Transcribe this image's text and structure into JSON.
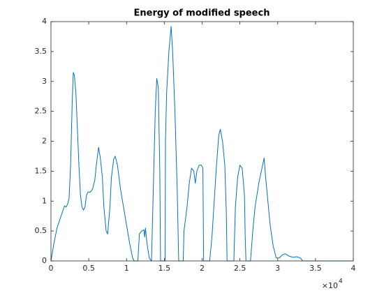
{
  "chart_data": {
    "type": "line",
    "title": "Energy of modified speech",
    "x_multiplier": "×10",
    "x_multiplier_exponent": "4",
    "color": "#0072bd",
    "xlim": [
      0,
      40000
    ],
    "ylim": [
      0,
      4
    ],
    "xticks": [
      {
        "value": 0,
        "label": "0"
      },
      {
        "value": 5000,
        "label": "0.5"
      },
      {
        "value": 10000,
        "label": "1"
      },
      {
        "value": 15000,
        "label": "1.5"
      },
      {
        "value": 20000,
        "label": "2"
      },
      {
        "value": 25000,
        "label": "2.5"
      },
      {
        "value": 30000,
        "label": "3"
      },
      {
        "value": 35000,
        "label": "3.5"
      },
      {
        "value": 40000,
        "label": "4"
      }
    ],
    "yticks": [
      0,
      0.5,
      1,
      1.5,
      2,
      2.5,
      3,
      3.5,
      4
    ],
    "x": [
      0,
      400,
      800,
      1200,
      1600,
      1800,
      2000,
      2200,
      2400,
      2600,
      2800,
      2950,
      3100,
      3300,
      3500,
      3700,
      3900,
      4100,
      4300,
      4500,
      4700,
      4900,
      5200,
      5500,
      5800,
      6000,
      6300,
      6500,
      6800,
      7000,
      7300,
      7500,
      7800,
      8000,
      8300,
      8500,
      8800,
      9200,
      9600,
      10000,
      10400,
      10800,
      11000,
      11500,
      11700,
      12000,
      12300,
      12400,
      12500,
      12700,
      13000,
      13300,
      13500,
      13800,
      14000,
      14200,
      14400,
      14500,
      15100,
      15150,
      15300,
      15600,
      15900,
      16100,
      16400,
      16700,
      16900,
      17500,
      17600,
      18000,
      18300,
      18600,
      18900,
      19100,
      19300,
      19600,
      19900,
      20100,
      20200,
      21000,
      21300,
      21600,
      21900,
      22200,
      22400,
      22700,
      23000,
      23200,
      23300,
      24200,
      24400,
      24700,
      25000,
      25300,
      25600,
      25700,
      25800,
      26400,
      26700,
      27000,
      27500,
      28000,
      28200,
      28400,
      28700,
      29000,
      29400,
      29800,
      30200,
      30600,
      31000,
      31500,
      32000,
      32500,
      33000,
      33300,
      40000
    ],
    "values": [
      0,
      0.3,
      0.55,
      0.7,
      0.85,
      0.92,
      0.9,
      0.95,
      1.05,
      1.6,
      2.6,
      3.15,
      3.1,
      2.8,
      2.2,
      1.6,
      1.1,
      0.9,
      0.85,
      0.9,
      1.1,
      1.15,
      1.15,
      1.2,
      1.35,
      1.6,
      1.9,
      1.75,
      1.4,
      0.9,
      0.5,
      0.45,
      0.9,
      1.4,
      1.7,
      1.75,
      1.6,
      1.2,
      0.9,
      0.6,
      0.3,
      0.05,
      0,
      0,
      0.45,
      0.5,
      0.52,
      0.4,
      0.55,
      0.3,
      0.05,
      0,
      1.0,
      2.5,
      3.05,
      2.9,
      1.5,
      0,
      0,
      2.0,
      2.8,
      3.5,
      3.92,
      3.5,
      2.5,
      1.2,
      0,
      0,
      0.5,
      0.9,
      1.3,
      1.55,
      1.5,
      1.3,
      1.5,
      1.6,
      1.6,
      1.55,
      0,
      0,
      0.4,
      1.0,
      1.6,
      2.1,
      2.2,
      2.0,
      1.6,
      0.8,
      0,
      0,
      0.9,
      1.4,
      1.6,
      1.55,
      1.1,
      0.4,
      0,
      0,
      0.5,
      0.9,
      1.3,
      1.6,
      1.72,
      1.4,
      1.0,
      0.6,
      0.25,
      0.05,
      0.05,
      0.1,
      0.12,
      0.08,
      0.06,
      0.07,
      0.05,
      0,
      0
    ]
  }
}
